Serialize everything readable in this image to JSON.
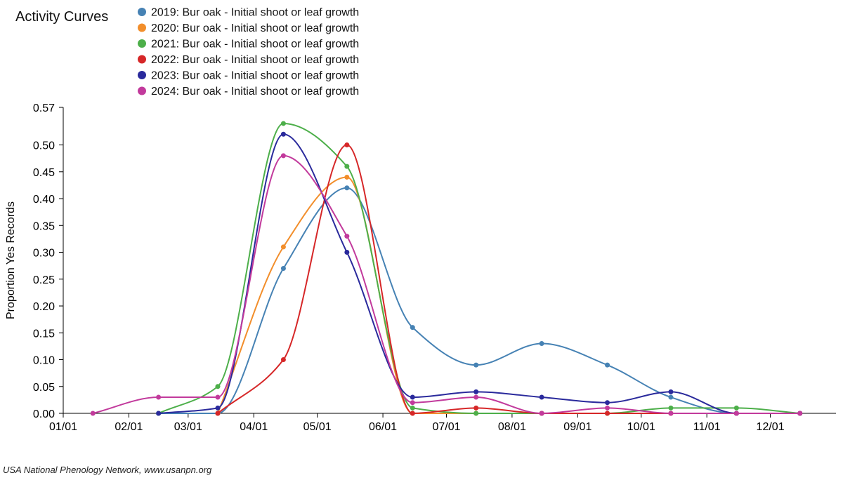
{
  "chart_data": {
    "type": "line",
    "title": "Activity Curves",
    "ylabel": "Proportion Yes Records",
    "xlabel": "",
    "x_ticks": [
      "01/01",
      "02/01",
      "03/01",
      "04/01",
      "05/01",
      "06/01",
      "07/01",
      "08/01",
      "09/01",
      "10/01",
      "11/01",
      "12/01"
    ],
    "x_domain_days": [
      0,
      365
    ],
    "y_ticks": [
      "0.00",
      "0.05",
      "0.10",
      "0.15",
      "0.20",
      "0.25",
      "0.30",
      "0.35",
      "0.40",
      "0.45",
      "0.50",
      "0.57"
    ],
    "ylim": [
      0,
      0.57
    ],
    "legend_position": "top-left",
    "series": [
      {
        "name": "2019: Bur oak - Initial shoot or leaf growth",
        "color": "#4682b4",
        "points": [
          [
            "02/15",
            0
          ],
          [
            "03/15",
            0
          ],
          [
            "04/15",
            0.27
          ],
          [
            "05/15",
            0.42
          ],
          [
            "06/15",
            0.16
          ],
          [
            "07/15",
            0.09
          ],
          [
            "08/15",
            0.13
          ],
          [
            "09/15",
            0.09
          ],
          [
            "10/15",
            0.03
          ],
          [
            "11/15",
            0
          ],
          [
            "12/15",
            0
          ]
        ]
      },
      {
        "name": "2020: Bur oak - Initial shoot or leaf growth",
        "color": "#f28e2b",
        "points": [
          [
            "03/15",
            0
          ],
          [
            "04/15",
            0.31
          ],
          [
            "05/15",
            0.44
          ],
          [
            "06/15",
            0
          ],
          [
            "07/15",
            0
          ],
          [
            "08/15",
            0
          ],
          [
            "09/15",
            0
          ],
          [
            "10/15",
            0
          ],
          [
            "11/15",
            0
          ],
          [
            "12/15",
            0
          ]
        ]
      },
      {
        "name": "2021: Bur oak - Initial shoot or leaf growth",
        "color": "#4daf4a",
        "points": [
          [
            "02/15",
            0
          ],
          [
            "03/15",
            0.05
          ],
          [
            "04/15",
            0.54
          ],
          [
            "05/15",
            0.46
          ],
          [
            "06/15",
            0.01
          ],
          [
            "07/15",
            0
          ],
          [
            "08/15",
            0
          ],
          [
            "09/15",
            0
          ],
          [
            "10/15",
            0.01
          ],
          [
            "11/15",
            0.01
          ],
          [
            "12/15",
            0
          ]
        ]
      },
      {
        "name": "2022: Bur oak - Initial shoot or leaf growth",
        "color": "#d62728",
        "points": [
          [
            "03/15",
            0
          ],
          [
            "04/15",
            0.1
          ],
          [
            "05/15",
            0.5
          ],
          [
            "06/15",
            0
          ],
          [
            "07/15",
            0.01
          ],
          [
            "08/15",
            0
          ],
          [
            "09/15",
            0
          ],
          [
            "10/15",
            0
          ],
          [
            "11/15",
            0
          ],
          [
            "12/15",
            0
          ]
        ]
      },
      {
        "name": "2023: Bur oak - Initial shoot or leaf growth",
        "color": "#2a2a9c",
        "points": [
          [
            "02/15",
            0
          ],
          [
            "03/15",
            0.01
          ],
          [
            "04/15",
            0.52
          ],
          [
            "05/15",
            0.3
          ],
          [
            "06/15",
            0.03
          ],
          [
            "07/15",
            0.04
          ],
          [
            "08/15",
            0.03
          ],
          [
            "09/15",
            0.02
          ],
          [
            "10/15",
            0.04
          ],
          [
            "11/15",
            0
          ],
          [
            "12/15",
            0
          ]
        ]
      },
      {
        "name": "2024: Bur oak - Initial shoot or leaf growth",
        "color": "#c23a9c",
        "points": [
          [
            "01/15",
            0
          ],
          [
            "02/15",
            0.03
          ],
          [
            "03/15",
            0.03
          ],
          [
            "04/15",
            0.48
          ],
          [
            "05/15",
            0.33
          ],
          [
            "06/15",
            0.02
          ],
          [
            "07/15",
            0.03
          ],
          [
            "08/15",
            0
          ],
          [
            "09/15",
            0.01
          ],
          [
            "10/15",
            0
          ],
          [
            "11/15",
            0
          ],
          [
            "12/15",
            0
          ]
        ]
      }
    ]
  },
  "footer": {
    "credit": "USA National Phenology Network, www.usanpn.org"
  }
}
